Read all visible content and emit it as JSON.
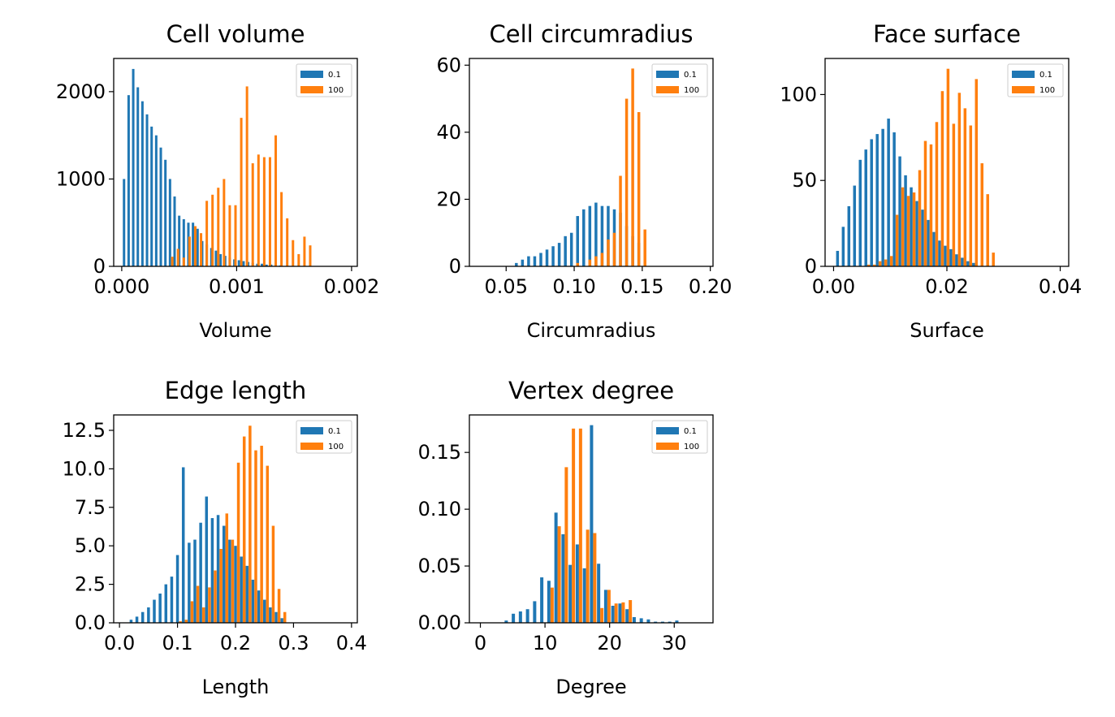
{
  "colors": {
    "series_a": "#1f77b4",
    "series_b": "#ff7f0e"
  },
  "chart_data": [
    {
      "type": "bar",
      "title": "Cell volume",
      "xlabel": "Volume",
      "ylabel": "",
      "xlim": [
        -7e-05,
        0.00205
      ],
      "ylim": [
        0,
        2380
      ],
      "xticks": [
        0,
        0.001,
        0.002
      ],
      "xtick_labels": [
        "0.000",
        "0.001",
        "0.002"
      ],
      "yticks": [
        0,
        1000,
        2000
      ],
      "ytick_labels": [
        "0",
        "1000",
        "2000"
      ],
      "legend_position": "upper right",
      "series": [
        {
          "name": "0.1",
          "x": [
            2e-05,
            6e-05,
            0.0001,
            0.00014,
            0.00018,
            0.00022,
            0.00026,
            0.0003,
            0.00034,
            0.00038,
            0.00042,
            0.00046,
            0.0005,
            0.00054,
            0.00058,
            0.00062,
            0.00066,
            0.0007,
            0.00074,
            0.00078,
            0.00082,
            0.00086,
            0.0009,
            0.00094,
            0.00098,
            0.00102,
            0.00106,
            0.0011,
            0.00114,
            0.00118,
            0.00122,
            0.00126,
            0.0013,
            0.00134,
            0.00138
          ],
          "values": [
            1000,
            1960,
            2260,
            2050,
            1890,
            1740,
            1600,
            1500,
            1360,
            1220,
            1000,
            800,
            580,
            540,
            500,
            500,
            430,
            290,
            250,
            210,
            180,
            140,
            120,
            100,
            80,
            70,
            60,
            50,
            40,
            30,
            30,
            20,
            20,
            15,
            10
          ]
        },
        {
          "name": "100",
          "x": [
            0.00044,
            0.00049,
            0.00054,
            0.00059,
            0.00064,
            0.00069,
            0.00074,
            0.00079,
            0.00084,
            0.00089,
            0.00094,
            0.00099,
            0.00104,
            0.00109,
            0.00114,
            0.00119,
            0.00124,
            0.00129,
            0.00134,
            0.00139,
            0.00144,
            0.00149,
            0.00154,
            0.00159,
            0.00164
          ],
          "values": [
            110,
            200,
            100,
            340,
            460,
            380,
            750,
            820,
            900,
            1000,
            700,
            700,
            1700,
            2060,
            1180,
            1280,
            1250,
            1250,
            1500,
            850,
            550,
            300,
            140,
            340,
            240
          ]
        }
      ]
    },
    {
      "type": "bar",
      "title": "Cell circumradius",
      "xlabel": "Circumradius",
      "ylabel": "",
      "xlim": [
        0.023,
        0.202
      ],
      "ylim": [
        0,
        62
      ],
      "xticks": [
        0.05,
        0.1,
        0.15,
        0.2
      ],
      "xtick_labels": [
        "0.05",
        "0.10",
        "0.15",
        "0.20"
      ],
      "yticks": [
        0,
        20,
        40,
        60
      ],
      "ytick_labels": [
        "0",
        "20",
        "40",
        "60"
      ],
      "legend_position": "upper right",
      "series": [
        {
          "name": "0.1",
          "x": [
            0.035,
            0.0395,
            0.044,
            0.0485,
            0.053,
            0.0575,
            0.062,
            0.0665,
            0.071,
            0.0755,
            0.08,
            0.0845,
            0.089,
            0.0935,
            0.098,
            0.1025,
            0.107,
            0.1115,
            0.116,
            0.1205,
            0.125,
            0.1295,
            0.134,
            0.1385,
            0.143,
            0.1475
          ],
          "values": [
            0,
            0,
            0,
            0,
            0,
            1,
            2,
            3,
            3,
            4,
            5,
            6,
            7,
            9,
            10,
            15,
            17,
            18,
            19,
            18,
            18,
            17,
            16,
            12,
            9,
            7
          ]
        },
        {
          "name": "100",
          "x": [
            0.0755,
            0.08,
            0.0845,
            0.089,
            0.0935,
            0.098,
            0.1025,
            0.107,
            0.1115,
            0.116,
            0.1205,
            0.125,
            0.1295,
            0.134,
            0.1385,
            0.143,
            0.1475,
            0.152
          ],
          "values": [
            0,
            0,
            0,
            0,
            0,
            0,
            1,
            0,
            2,
            3,
            4,
            8,
            10,
            27,
            50,
            59,
            46,
            11
          ]
        }
      ]
    },
    {
      "type": "bar",
      "title": "Face surface",
      "xlabel": "Surface",
      "ylabel": "",
      "xlim": [
        -0.0015,
        0.0415
      ],
      "ylim": [
        0,
        121
      ],
      "xticks": [
        0,
        0.02,
        0.04
      ],
      "xtick_labels": [
        "0.00",
        "0.02",
        "0.04"
      ],
      "yticks": [
        0,
        50,
        100
      ],
      "ytick_labels": [
        "0",
        "50",
        "100"
      ],
      "legend_position": "upper right",
      "series": [
        {
          "name": "0.1",
          "x": [
            0.0007,
            0.0017,
            0.0027,
            0.0037,
            0.0047,
            0.0057,
            0.0067,
            0.0077,
            0.0087,
            0.0097,
            0.0107,
            0.0117,
            0.0127,
            0.0137,
            0.0147,
            0.0157,
            0.0167,
            0.0177,
            0.0187,
            0.0197,
            0.0207,
            0.0217,
            0.0227,
            0.0237,
            0.0247
          ],
          "values": [
            9,
            23,
            35,
            47,
            62,
            68,
            74,
            77,
            80,
            86,
            78,
            64,
            53,
            46,
            38,
            33,
            27,
            20,
            15,
            12,
            10,
            7,
            5,
            3,
            2
          ]
        },
        {
          "name": "100",
          "x": [
            0.0062,
            0.0072,
            0.0082,
            0.0092,
            0.0102,
            0.0112,
            0.0122,
            0.0132,
            0.0142,
            0.0152,
            0.0162,
            0.0172,
            0.0182,
            0.0192,
            0.0202,
            0.0212,
            0.0222,
            0.0232,
            0.0242,
            0.0252,
            0.0262,
            0.0272,
            0.0282
          ],
          "values": [
            1,
            1,
            3,
            4,
            6,
            30,
            46,
            41,
            43,
            56,
            73,
            71,
            84,
            102,
            115,
            83,
            101,
            92,
            82,
            109,
            60,
            42,
            8
          ]
        }
      ]
    },
    {
      "type": "bar",
      "title": "Edge length",
      "xlabel": "Length",
      "ylabel": "",
      "xlim": [
        -0.01,
        0.41
      ],
      "ylim": [
        0,
        13.5
      ],
      "xticks": [
        0,
        0.1,
        0.2,
        0.3,
        0.4
      ],
      "xtick_labels": [
        "0.0",
        "0.1",
        "0.2",
        "0.3",
        "0.4"
      ],
      "yticks": [
        0,
        2.5,
        5,
        7.5,
        10,
        12.5
      ],
      "ytick_labels": [
        "0.0",
        "2.5",
        "5.0",
        "7.5",
        "10.0",
        "12.5"
      ],
      "legend_position": "upper right",
      "series": [
        {
          "name": "0.1",
          "x": [
            0.02,
            0.03,
            0.04,
            0.05,
            0.06,
            0.07,
            0.08,
            0.09,
            0.1,
            0.11,
            0.12,
            0.13,
            0.14,
            0.15,
            0.16,
            0.17,
            0.18,
            0.19,
            0.2,
            0.21,
            0.22,
            0.23,
            0.24,
            0.25,
            0.26,
            0.27,
            0.28
          ],
          "values": [
            0.2,
            0.4,
            0.7,
            1.0,
            1.5,
            1.9,
            2.5,
            3.0,
            4.4,
            10.1,
            5.2,
            5.4,
            6.5,
            8.2,
            6.8,
            7.0,
            6.3,
            5.4,
            5.0,
            4.3,
            3.7,
            2.8,
            2.1,
            1.5,
            1.0,
            0.7,
            0.3
          ]
        },
        {
          "name": "100",
          "x": [
            0.105,
            0.115,
            0.125,
            0.135,
            0.145,
            0.155,
            0.165,
            0.175,
            0.185,
            0.195,
            0.205,
            0.215,
            0.225,
            0.235,
            0.245,
            0.255,
            0.265,
            0.275,
            0.285
          ],
          "values": [
            0.1,
            0.2,
            1.4,
            2.4,
            1.0,
            2.3,
            3.4,
            4.8,
            7.1,
            5.4,
            10.4,
            12.1,
            12.8,
            11.2,
            11.5,
            10.2,
            6.3,
            2.2,
            0.7
          ]
        }
      ]
    },
    {
      "type": "bar",
      "title": "Vertex degree",
      "xlabel": "Degree",
      "ylabel": "",
      "xlim": [
        -1.7,
        36
      ],
      "ylim": [
        0,
        0.183
      ],
      "xticks": [
        0,
        10,
        20,
        30
      ],
      "xtick_labels": [
        "0",
        "10",
        "20",
        "30"
      ],
      "yticks": [
        0,
        0.05,
        0.1,
        0.15
      ],
      "ytick_labels": [
        "0.00",
        "0.05",
        "0.10",
        "0.15"
      ],
      "legend_position": "upper right",
      "series": [
        {
          "name": "0.1",
          "x": [
            4,
            5.1,
            6.2,
            7.3,
            8.4,
            9.5,
            10.6,
            11.7,
            12.8,
            13.9,
            15.0,
            16.1,
            17.2,
            18.3,
            19.4,
            20.5,
            21.6,
            22.7,
            23.8,
            24.9,
            26.0,
            27.1,
            28.2,
            29.3,
            30.4
          ],
          "values": [
            0.002,
            0.008,
            0.01,
            0.012,
            0.019,
            0.04,
            0.037,
            0.097,
            0.078,
            0.051,
            0.069,
            0.048,
            0.174,
            0.052,
            0.029,
            0.015,
            0.017,
            0.012,
            0.005,
            0.004,
            0.003,
            0.001,
            0.001,
            0.001,
            0.002
          ]
        },
        {
          "name": "100",
          "x": [
            10.0,
            11.1,
            12.2,
            13.3,
            14.4,
            15.5,
            16.6,
            17.7,
            18.8,
            19.9,
            21.0,
            22.1,
            23.2
          ],
          "values": [
            0.0,
            0.031,
            0.085,
            0.137,
            0.171,
            0.171,
            0.082,
            0.079,
            0.013,
            0.029,
            0.017,
            0.018,
            0.02
          ]
        }
      ]
    }
  ]
}
